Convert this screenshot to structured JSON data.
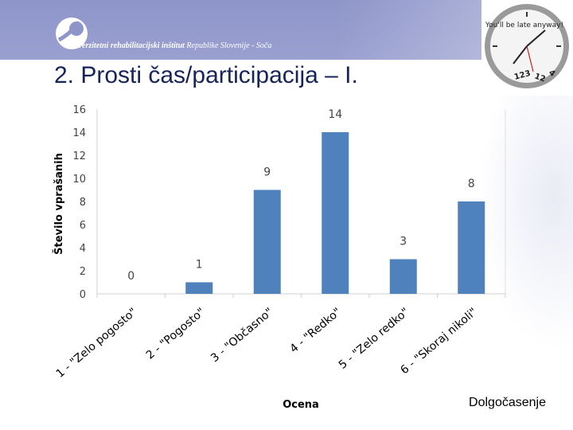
{
  "header": {
    "institution_bold": "Univerzitetni rehabilitacijski inštitut",
    "institution_rest": "Republike Slovenije - Soča",
    "clock_text": "You'll be late anyway!"
  },
  "slide": {
    "title": "2. Prosti čas/participacija – I.",
    "footer": "Dolgočasenje"
  },
  "colors": {
    "bar": "#4f81bd",
    "banner": "#8e95c9",
    "title": "#17245a"
  },
  "chart_data": {
    "type": "bar",
    "categories": [
      "1 - \"Zelo pogosto\"",
      "2 - \"Pogosto\"",
      "3 - \"Občasno\"",
      "4 - \"Redko\"",
      "5 - \"Zelo redko\"",
      "6 - \"Skoraj nikoli\""
    ],
    "values": [
      0,
      1,
      9,
      14,
      3,
      8
    ],
    "xlabel": "Ocena",
    "ylabel": "Število vprašanih",
    "ylim": [
      0,
      16
    ],
    "yticks": [
      0,
      2,
      4,
      6,
      8,
      10,
      12,
      14,
      16
    ],
    "grid": false,
    "data_labels": true
  }
}
